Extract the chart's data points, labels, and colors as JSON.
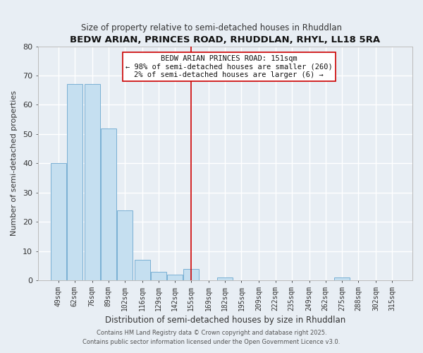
{
  "title": "BEDW ARIAN, PRINCES ROAD, RHUDDLAN, RHYL, LL18 5RA",
  "subtitle": "Size of property relative to semi-detached houses in Rhuddlan",
  "xlabel": "Distribution of semi-detached houses by size in Rhuddlan",
  "ylabel": "Number of semi-detached properties",
  "bar_heights": [
    40,
    67,
    67,
    52,
    24,
    7,
    3,
    2,
    4,
    0,
    1,
    0,
    0,
    0,
    0,
    0,
    0,
    1,
    0,
    0,
    0
  ],
  "tick_labels": [
    "49sqm",
    "62sqm",
    "76sqm",
    "89sqm",
    "102sqm",
    "116sqm",
    "129sqm",
    "142sqm",
    "155sqm",
    "169sqm",
    "182sqm",
    "195sqm",
    "209sqm",
    "222sqm",
    "235sqm",
    "249sqm",
    "262sqm",
    "275sqm",
    "288sqm",
    "302sqm",
    "315sqm"
  ],
  "bar_color": "#c5dff0",
  "bar_edge_color": "#7ab0d4",
  "background_color": "#e8eef4",
  "grid_color": "#ffffff",
  "vline_color": "#cc0000",
  "annotation_title": "BEDW ARIAN PRINCES ROAD: 151sqm",
  "annotation_line1": "← 98% of semi-detached houses are smaller (260)",
  "annotation_line2": "2% of semi-detached houses are larger (6) →",
  "annotation_box_color": "#ffffff",
  "annotation_box_edge": "#cc0000",
  "ylim": [
    0,
    80
  ],
  "yticks": [
    0,
    10,
    20,
    30,
    40,
    50,
    60,
    70,
    80
  ],
  "footer1": "Contains HM Land Registry data © Crown copyright and database right 2025.",
  "footer2": "Contains public sector information licensed under the Open Government Licence v3.0."
}
